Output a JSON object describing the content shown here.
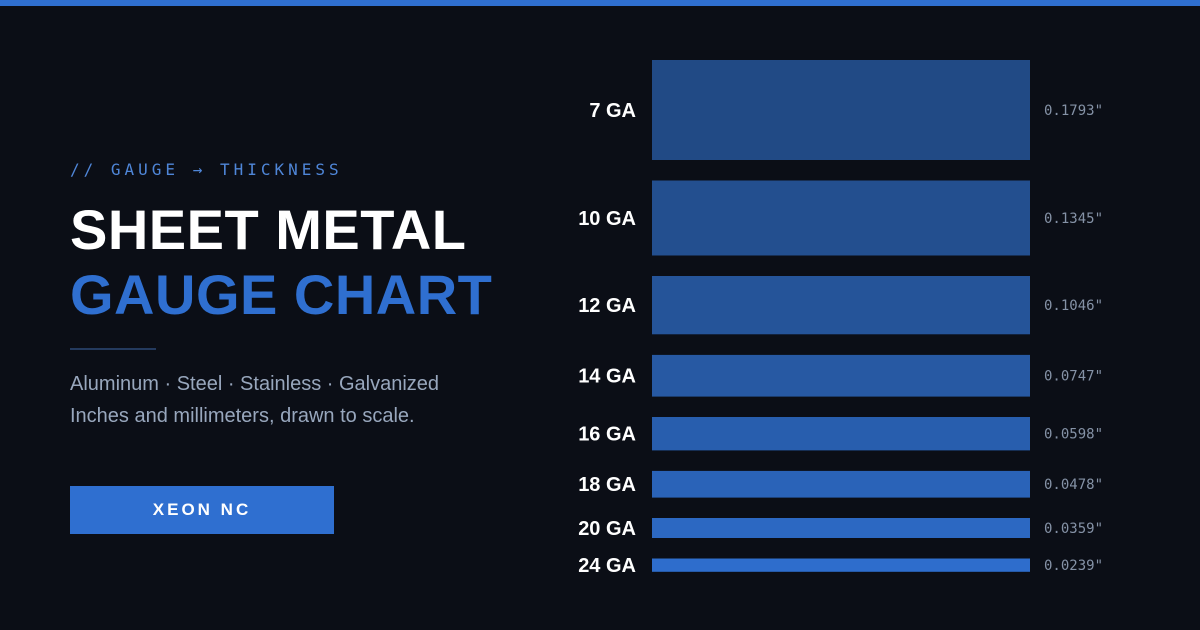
{
  "header": {
    "eyebrow": "// GAUGE → THICKNESS",
    "title_line1": "SHEET METAL",
    "title_line2": "GAUGE CHART",
    "subtitle_line1": "Aluminum · Steel · Stainless · Galvanized",
    "subtitle_line2": "Inches and millimeters, drawn to scale."
  },
  "brand_button": {
    "label": "XEON NC"
  },
  "colors": {
    "background": "#0b0e16",
    "accent": "#2f6fd0",
    "bar_dark": "#214a85",
    "bar_light": "#2e6dcc"
  },
  "chart_data": {
    "type": "bar",
    "orientation": "horizontal",
    "categories": [
      "7 GA",
      "10 GA",
      "12 GA",
      "14 GA",
      "16 GA",
      "18 GA",
      "20 GA",
      "24 GA"
    ],
    "values": [
      0.1793,
      0.1345,
      0.1046,
      0.0747,
      0.0598,
      0.0478,
      0.0359,
      0.0239
    ],
    "value_labels": [
      "0.1793\"",
      "0.1345\"",
      "0.1046\"",
      "0.0747\"",
      "0.0598\"",
      "0.0478\"",
      "0.0359\"",
      "0.0239\""
    ],
    "unit": "in",
    "encoding": "bar thickness proportional to value"
  }
}
